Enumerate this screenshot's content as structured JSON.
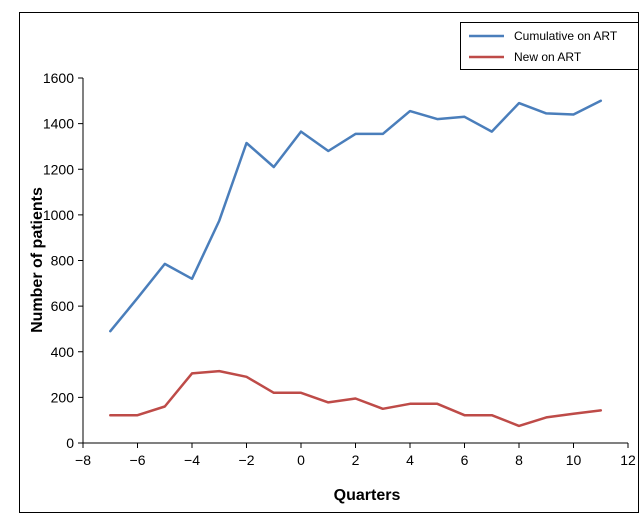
{
  "chart_data": {
    "type": "line",
    "xlabel": "Quarters",
    "ylabel": "Number of patients",
    "xlim": [
      -8,
      12
    ],
    "ylim": [
      0,
      1600
    ],
    "xticks": [
      -8,
      -6,
      -4,
      -2,
      0,
      2,
      4,
      6,
      8,
      10,
      12
    ],
    "xtick_labels": [
      "−8",
      "−6",
      "−4",
      "−2",
      "0",
      "2",
      "4",
      "6",
      "8",
      "10",
      "12"
    ],
    "yticks": [
      0,
      200,
      400,
      600,
      800,
      1000,
      1200,
      1400,
      1600
    ],
    "ytick_labels": [
      "0",
      "200",
      "400",
      "600",
      "800",
      "1000",
      "1200",
      "1400",
      "1600"
    ],
    "grid": false,
    "legend_position": "top-right",
    "x": [
      -7,
      -6,
      -5,
      -4,
      -3,
      -2,
      -1,
      0,
      1,
      2,
      3,
      4,
      5,
      6,
      7,
      8,
      9,
      10,
      11
    ],
    "series": [
      {
        "name": "Cumulative on ART",
        "color": "#4a7ebb",
        "values": [
          490,
          635,
          785,
          720,
          975,
          1315,
          1210,
          1365,
          1280,
          1355,
          1355,
          1455,
          1420,
          1430,
          1365,
          1490,
          1445,
          1440,
          1500
        ]
      },
      {
        "name": "New on ART",
        "color": "#be4b48",
        "values": [
          122,
          122,
          160,
          305,
          315,
          290,
          220,
          220,
          178,
          195,
          150,
          172,
          172,
          122,
          122,
          75,
          112,
          128,
          143
        ]
      }
    ]
  }
}
